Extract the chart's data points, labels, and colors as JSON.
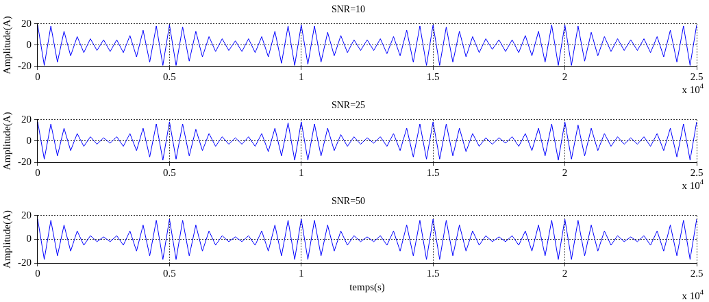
{
  "chart_data": [
    {
      "type": "line",
      "title": "SNR=10",
      "ylabel": "Amplitude(A)",
      "color": "#0000ff",
      "marker": "none",
      "grid": true,
      "annotations": [
        "x 10$^{4}$"
      ],
      "xlim": [
        0,
        2.5
      ],
      "ylim": [
        -20,
        20
      ],
      "yticks": [
        -20,
        0,
        20
      ],
      "xticks": [
        0,
        0.5,
        1,
        1.5,
        2,
        2.5
      ],
      "x": [
        0,
        0.025,
        0.05,
        0.075,
        0.1,
        0.125,
        0.15,
        0.175,
        0.2,
        0.225,
        0.25,
        0.275,
        0.3,
        0.325,
        0.35,
        0.375,
        0.4,
        0.425,
        0.45,
        0.475,
        0.5,
        0.525,
        0.55,
        0.575,
        0.6,
        0.625,
        0.65,
        0.675,
        0.7,
        0.725,
        0.75,
        0.775,
        0.8,
        0.825,
        0.85,
        0.875,
        0.9,
        0.925,
        0.95,
        0.975,
        1,
        1.025,
        1.05,
        1.075,
        1.1,
        1.125,
        1.15,
        1.175,
        1.2,
        1.225,
        1.25,
        1.275,
        1.3,
        1.325,
        1.35,
        1.375,
        1.4,
        1.425,
        1.45,
        1.475,
        1.5,
        1.525,
        1.55,
        1.575,
        1.6,
        1.625,
        1.65,
        1.675,
        1.7,
        1.725,
        1.75,
        1.775,
        1.8,
        1.825,
        1.85,
        1.875,
        1.9,
        1.925,
        1.95,
        1.975,
        2,
        2.025,
        2.05,
        2.075,
        2.1,
        2.125,
        2.15,
        2.175,
        2.2,
        2.225,
        2.25,
        2.275,
        2.3,
        2.325,
        2.35,
        2.375,
        2.4,
        2.425,
        2.45,
        2.475,
        2.5
      ],
      "values": [
        19,
        -19,
        18,
        -16,
        13,
        -10,
        8,
        -7,
        6,
        -5,
        5,
        -6,
        5,
        -7,
        9,
        -11,
        14,
        -16,
        18,
        -19,
        19,
        -19,
        17,
        -15,
        13,
        -11,
        8,
        -6,
        6,
        -5,
        4,
        -6,
        6,
        -7,
        8,
        -11,
        13,
        -17,
        18,
        -19,
        19,
        -18,
        18,
        -16,
        12,
        -10,
        9,
        -7,
        5,
        -5,
        5,
        -5,
        6,
        -8,
        8,
        -10,
        14,
        -16,
        18,
        -19,
        19,
        -19,
        17,
        -16,
        13,
        -11,
        8,
        -7,
        6,
        -4,
        5,
        -6,
        5,
        -7,
        9,
        -10,
        13,
        -16,
        19,
        -19,
        19,
        -19,
        18,
        -15,
        12,
        -10,
        8,
        -6,
        6,
        -5,
        5,
        -5,
        6,
        -7,
        8,
        -11,
        14,
        -16,
        18,
        -19,
        19
      ]
    },
    {
      "type": "line",
      "title": "SNR=25",
      "ylabel": "Amplitude(A)",
      "color": "#0000ff",
      "marker": "none",
      "grid": true,
      "annotations": [
        "x 10$^{4}$"
      ],
      "xlim": [
        0,
        2.5
      ],
      "ylim": [
        -20,
        20
      ],
      "yticks": [
        -20,
        0,
        20
      ],
      "xticks": [
        0,
        0.5,
        1,
        1.5,
        2,
        2.5
      ],
      "x": [
        0,
        0.025,
        0.05,
        0.075,
        0.1,
        0.125,
        0.15,
        0.175,
        0.2,
        0.225,
        0.25,
        0.275,
        0.3,
        0.325,
        0.35,
        0.375,
        0.4,
        0.425,
        0.45,
        0.475,
        0.5,
        0.525,
        0.55,
        0.575,
        0.6,
        0.625,
        0.65,
        0.675,
        0.7,
        0.725,
        0.75,
        0.775,
        0.8,
        0.825,
        0.85,
        0.875,
        0.9,
        0.925,
        0.95,
        0.975,
        1,
        1.025,
        1.05,
        1.075,
        1.1,
        1.125,
        1.15,
        1.175,
        1.2,
        1.225,
        1.25,
        1.275,
        1.3,
        1.325,
        1.35,
        1.375,
        1.4,
        1.425,
        1.45,
        1.475,
        1.5,
        1.525,
        1.55,
        1.575,
        1.6,
        1.625,
        1.65,
        1.675,
        1.7,
        1.725,
        1.75,
        1.775,
        1.8,
        1.825,
        1.85,
        1.875,
        1.9,
        1.925,
        1.95,
        1.975,
        2,
        2.025,
        2.05,
        2.075,
        2.1,
        2.125,
        2.15,
        2.175,
        2.2,
        2.225,
        2.25,
        2.275,
        2.3,
        2.325,
        2.35,
        2.375,
        2.4,
        2.425,
        2.45,
        2.475,
        2.5
      ],
      "values": [
        18,
        -17,
        16,
        -14,
        12,
        -9,
        7,
        -5,
        4,
        -3,
        3,
        -2,
        4,
        -5,
        7,
        -9,
        12,
        -15,
        16,
        -18,
        18,
        -17,
        16,
        -14,
        11,
        -9,
        7,
        -5,
        4,
        -3,
        3,
        -3,
        4,
        -5,
        7,
        -10,
        12,
        -14,
        17,
        -18,
        18,
        -18,
        16,
        -14,
        12,
        -9,
        6,
        -5,
        4,
        -3,
        3,
        -2,
        4,
        -5,
        7,
        -9,
        12,
        -15,
        16,
        -17,
        18,
        -17,
        16,
        -14,
        12,
        -10,
        7,
        -5,
        3,
        -3,
        3,
        -2,
        4,
        -5,
        7,
        -9,
        12,
        -14,
        16,
        -18,
        18,
        -17,
        15,
        -14,
        12,
        -9,
        7,
        -5,
        4,
        -3,
        3,
        -3,
        4,
        -5,
        7,
        -9,
        12,
        -15,
        16,
        -18,
        18
      ]
    },
    {
      "type": "line",
      "title": "SNR=50",
      "xlabel": "temps(s)",
      "ylabel": "Amplitude(A)",
      "color": "#0000ff",
      "marker": "none",
      "grid": true,
      "annotations": [
        "x 10$^{4}$"
      ],
      "xlim": [
        0,
        2.5
      ],
      "ylim": [
        -20,
        20
      ],
      "yticks": [
        -20,
        0,
        20
      ],
      "xticks": [
        0,
        0.5,
        1,
        1.5,
        2,
        2.5
      ],
      "x": [
        0,
        0.025,
        0.05,
        0.075,
        0.1,
        0.125,
        0.15,
        0.175,
        0.2,
        0.225,
        0.25,
        0.275,
        0.3,
        0.325,
        0.35,
        0.375,
        0.4,
        0.425,
        0.45,
        0.475,
        0.5,
        0.525,
        0.55,
        0.575,
        0.6,
        0.625,
        0.65,
        0.675,
        0.7,
        0.725,
        0.75,
        0.775,
        0.8,
        0.825,
        0.85,
        0.875,
        0.9,
        0.925,
        0.95,
        0.975,
        1,
        1.025,
        1.05,
        1.075,
        1.1,
        1.125,
        1.15,
        1.175,
        1.2,
        1.225,
        1.25,
        1.275,
        1.3,
        1.325,
        1.35,
        1.375,
        1.4,
        1.425,
        1.45,
        1.475,
        1.5,
        1.525,
        1.55,
        1.575,
        1.6,
        1.625,
        1.65,
        1.675,
        1.7,
        1.725,
        1.75,
        1.775,
        1.8,
        1.825,
        1.85,
        1.875,
        1.9,
        1.925,
        1.95,
        1.975,
        2,
        2.025,
        2.05,
        2.075,
        2.1,
        2.125,
        2.15,
        2.175,
        2.2,
        2.225,
        2.25,
        2.275,
        2.3,
        2.325,
        2.35,
        2.375,
        2.4,
        2.425,
        2.45,
        2.475,
        2.5
      ],
      "values": [
        17,
        -17,
        16,
        -14,
        12,
        -10,
        7,
        -5,
        3,
        -2,
        2,
        -2,
        3,
        -5,
        7,
        -10,
        12,
        -14,
        16,
        -17,
        17,
        -17,
        16,
        -14,
        12,
        -10,
        7,
        -5,
        3,
        -2,
        2,
        -2,
        3,
        -5,
        7,
        -10,
        12,
        -14,
        16,
        -17,
        17,
        -17,
        16,
        -14,
        12,
        -10,
        7,
        -5,
        3,
        -2,
        2,
        -2,
        3,
        -5,
        7,
        -10,
        12,
        -14,
        16,
        -17,
        17,
        -17,
        16,
        -14,
        12,
        -10,
        7,
        -5,
        3,
        -2,
        2,
        -2,
        3,
        -5,
        7,
        -10,
        12,
        -14,
        16,
        -17,
        17,
        -17,
        16,
        -14,
        12,
        -10,
        7,
        -5,
        3,
        -2,
        2,
        -2,
        3,
        -5,
        7,
        -10,
        12,
        -14,
        16,
        -17,
        17
      ]
    }
  ]
}
